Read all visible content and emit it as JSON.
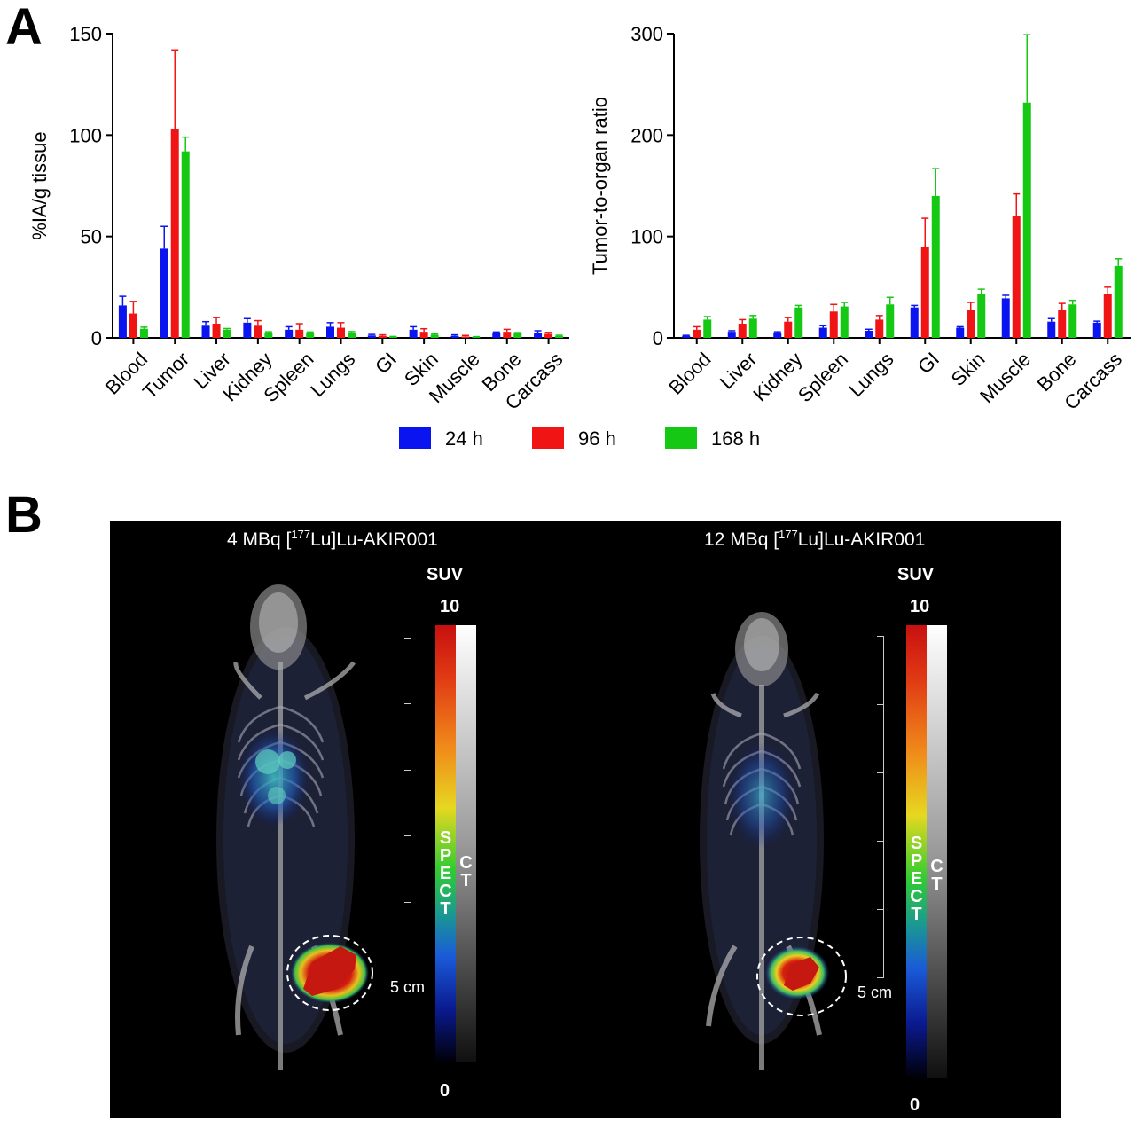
{
  "panels": {
    "a_label": "A",
    "b_label": "B"
  },
  "colors": {
    "24h": "#0a14f0",
    "96h": "#f01414",
    "168h": "#14c814"
  },
  "legend": [
    {
      "label": "24 h",
      "color": "#0a14f0"
    },
    {
      "label": "96 h",
      "color": "#f01414"
    },
    {
      "label": "168 h",
      "color": "#14c814"
    }
  ],
  "chart_data": [
    {
      "type": "bar",
      "ylabel": "%IA/g tissue",
      "ylim": [
        0,
        150
      ],
      "yticks": [
        0,
        50,
        100,
        150
      ],
      "categories": [
        "Blood",
        "Tumor",
        "Liver",
        "Kidney",
        "Spleen",
        "Lungs",
        "GI",
        "Skin",
        "Muscle",
        "Bone",
        "Carcass"
      ],
      "series": [
        {
          "name": "24 h",
          "values": [
            16,
            44,
            6,
            7.5,
            4,
            5.5,
            1.2,
            4,
            1,
            2.2,
            2.5
          ],
          "errors": [
            4.5,
            11,
            2,
            2,
            1.5,
            2,
            0.5,
            1.5,
            0.5,
            0.7,
            1
          ]
        },
        {
          "name": "96 h",
          "values": [
            12,
            103,
            7,
            6,
            4,
            5,
            1,
            3,
            0.7,
            3,
            2
          ],
          "errors": [
            6,
            39,
            3,
            2.5,
            3,
            2.5,
            0.5,
            1.5,
            0.5,
            1.2,
            0.7
          ]
        },
        {
          "name": "168 h",
          "values": [
            4.5,
            92,
            4,
            2.5,
            2.5,
            2.5,
            0.5,
            1.5,
            0.4,
            2.2,
            1
          ],
          "errors": [
            0.8,
            7,
            0.6,
            0.5,
            0.4,
            0.6,
            0.2,
            0.4,
            0.2,
            0.4,
            0.3
          ]
        }
      ],
      "legend": "bottom",
      "grid": false
    },
    {
      "type": "bar",
      "ylabel": "Tumor-to-organ ratio",
      "ylim": [
        0,
        300
      ],
      "yticks": [
        0,
        100,
        200,
        300
      ],
      "categories": [
        "Blood",
        "Liver",
        "Kidney",
        "Spleen",
        "Lungs",
        "GI",
        "Skin",
        "Muscle",
        "Bone",
        "Carcass"
      ],
      "series": [
        {
          "name": "24 h",
          "values": [
            2,
            6,
            5,
            10,
            7,
            30,
            10,
            39,
            16,
            15
          ],
          "errors": [
            0.5,
            1,
            1,
            2,
            1.5,
            2,
            1,
            3,
            3,
            1.5
          ]
        },
        {
          "name": "96 h",
          "values": [
            8,
            14,
            16,
            26,
            18,
            90,
            28,
            120,
            28,
            43
          ],
          "errors": [
            3,
            4,
            4,
            7,
            4,
            28,
            7,
            22,
            6,
            7
          ]
        },
        {
          "name": "168 h",
          "values": [
            18,
            19,
            30,
            31,
            33,
            140,
            43,
            232,
            33,
            71
          ],
          "errors": [
            3,
            3,
            2,
            4,
            7,
            27,
            5,
            67,
            4,
            7
          ]
        }
      ],
      "legend": "bottom",
      "grid": false
    }
  ],
  "imaging": {
    "left": {
      "title_pre": "4 MBq [",
      "title_sup": "177",
      "title_post": "Lu]Lu-AKIR001",
      "suv_label": "SUV",
      "suv_max": "10",
      "suv_min": "0",
      "spect_letters": [
        "S",
        "P",
        "E",
        "C",
        "T"
      ],
      "ct_letters": [
        "C",
        "T"
      ],
      "scale_label": "5 cm"
    },
    "right": {
      "title_pre": "12 MBq [",
      "title_sup": "177",
      "title_post": "Lu]Lu-AKIR001",
      "suv_label": "SUV",
      "suv_max": "10",
      "suv_min": "0",
      "spect_letters": [
        "S",
        "P",
        "E",
        "C",
        "T"
      ],
      "ct_letters": [
        "C",
        "T"
      ],
      "scale_label": "5 cm"
    }
  }
}
